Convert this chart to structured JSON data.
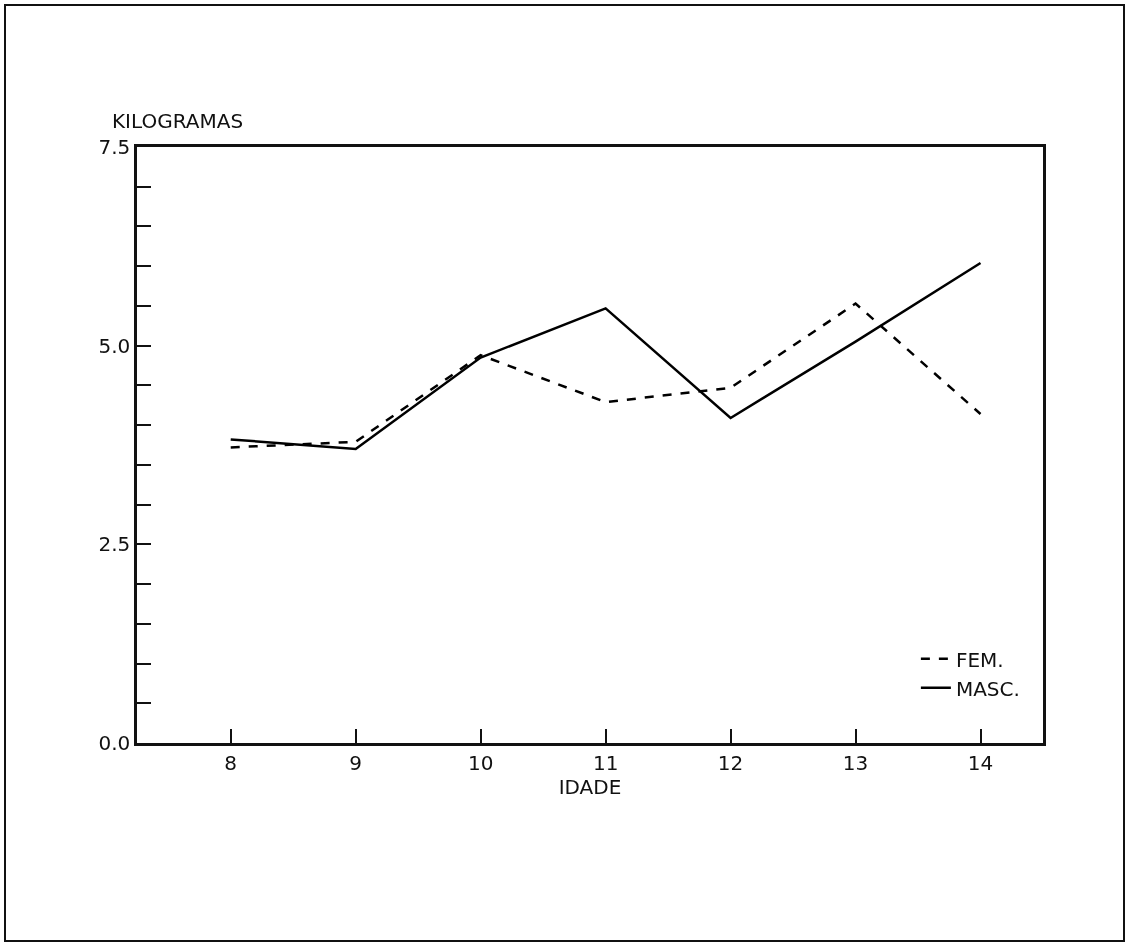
{
  "chart_data": {
    "type": "line",
    "ylabel": "KILOGRAMAS",
    "xlabel": "IDADE",
    "x": [
      8,
      9,
      10,
      11,
      12,
      13,
      14
    ],
    "series": [
      {
        "name": "FEM.",
        "color": "#000000",
        "line_style": "dashed",
        "values": [
          3.72,
          3.79,
          4.88,
          4.29,
          4.47,
          5.53,
          4.14
        ]
      },
      {
        "name": "MASC.",
        "color": "#000000",
        "line_style": "solid",
        "values": [
          3.82,
          3.7,
          4.85,
          5.47,
          4.09,
          5.05,
          6.04
        ]
      }
    ],
    "xlim": [
      7.25,
      14.5
    ],
    "xticks": [
      8,
      9,
      10,
      11,
      12,
      13,
      14
    ],
    "ylim": [
      0,
      7.5
    ],
    "yticks": [
      {
        "value": 0,
        "label": "0.0"
      },
      {
        "value": 0.5,
        "label": null
      },
      {
        "value": 1,
        "label": null
      },
      {
        "value": 1.5,
        "label": null
      },
      {
        "value": 2,
        "label": null
      },
      {
        "value": 2.5,
        "label": "2.5"
      },
      {
        "value": 3,
        "label": null
      },
      {
        "value": 3.5,
        "label": null
      },
      {
        "value": 4,
        "label": null
      },
      {
        "value": 4.5,
        "label": null
      },
      {
        "value": 5,
        "label": "5.0"
      },
      {
        "value": 5.5,
        "label": null
      },
      {
        "value": 6,
        "label": null
      },
      {
        "value": 6.5,
        "label": null
      },
      {
        "value": 7,
        "label": null
      },
      {
        "value": 7.5,
        "label": "7.5"
      }
    ],
    "grid": false,
    "legend": "bottom right",
    "marker": "none"
  }
}
